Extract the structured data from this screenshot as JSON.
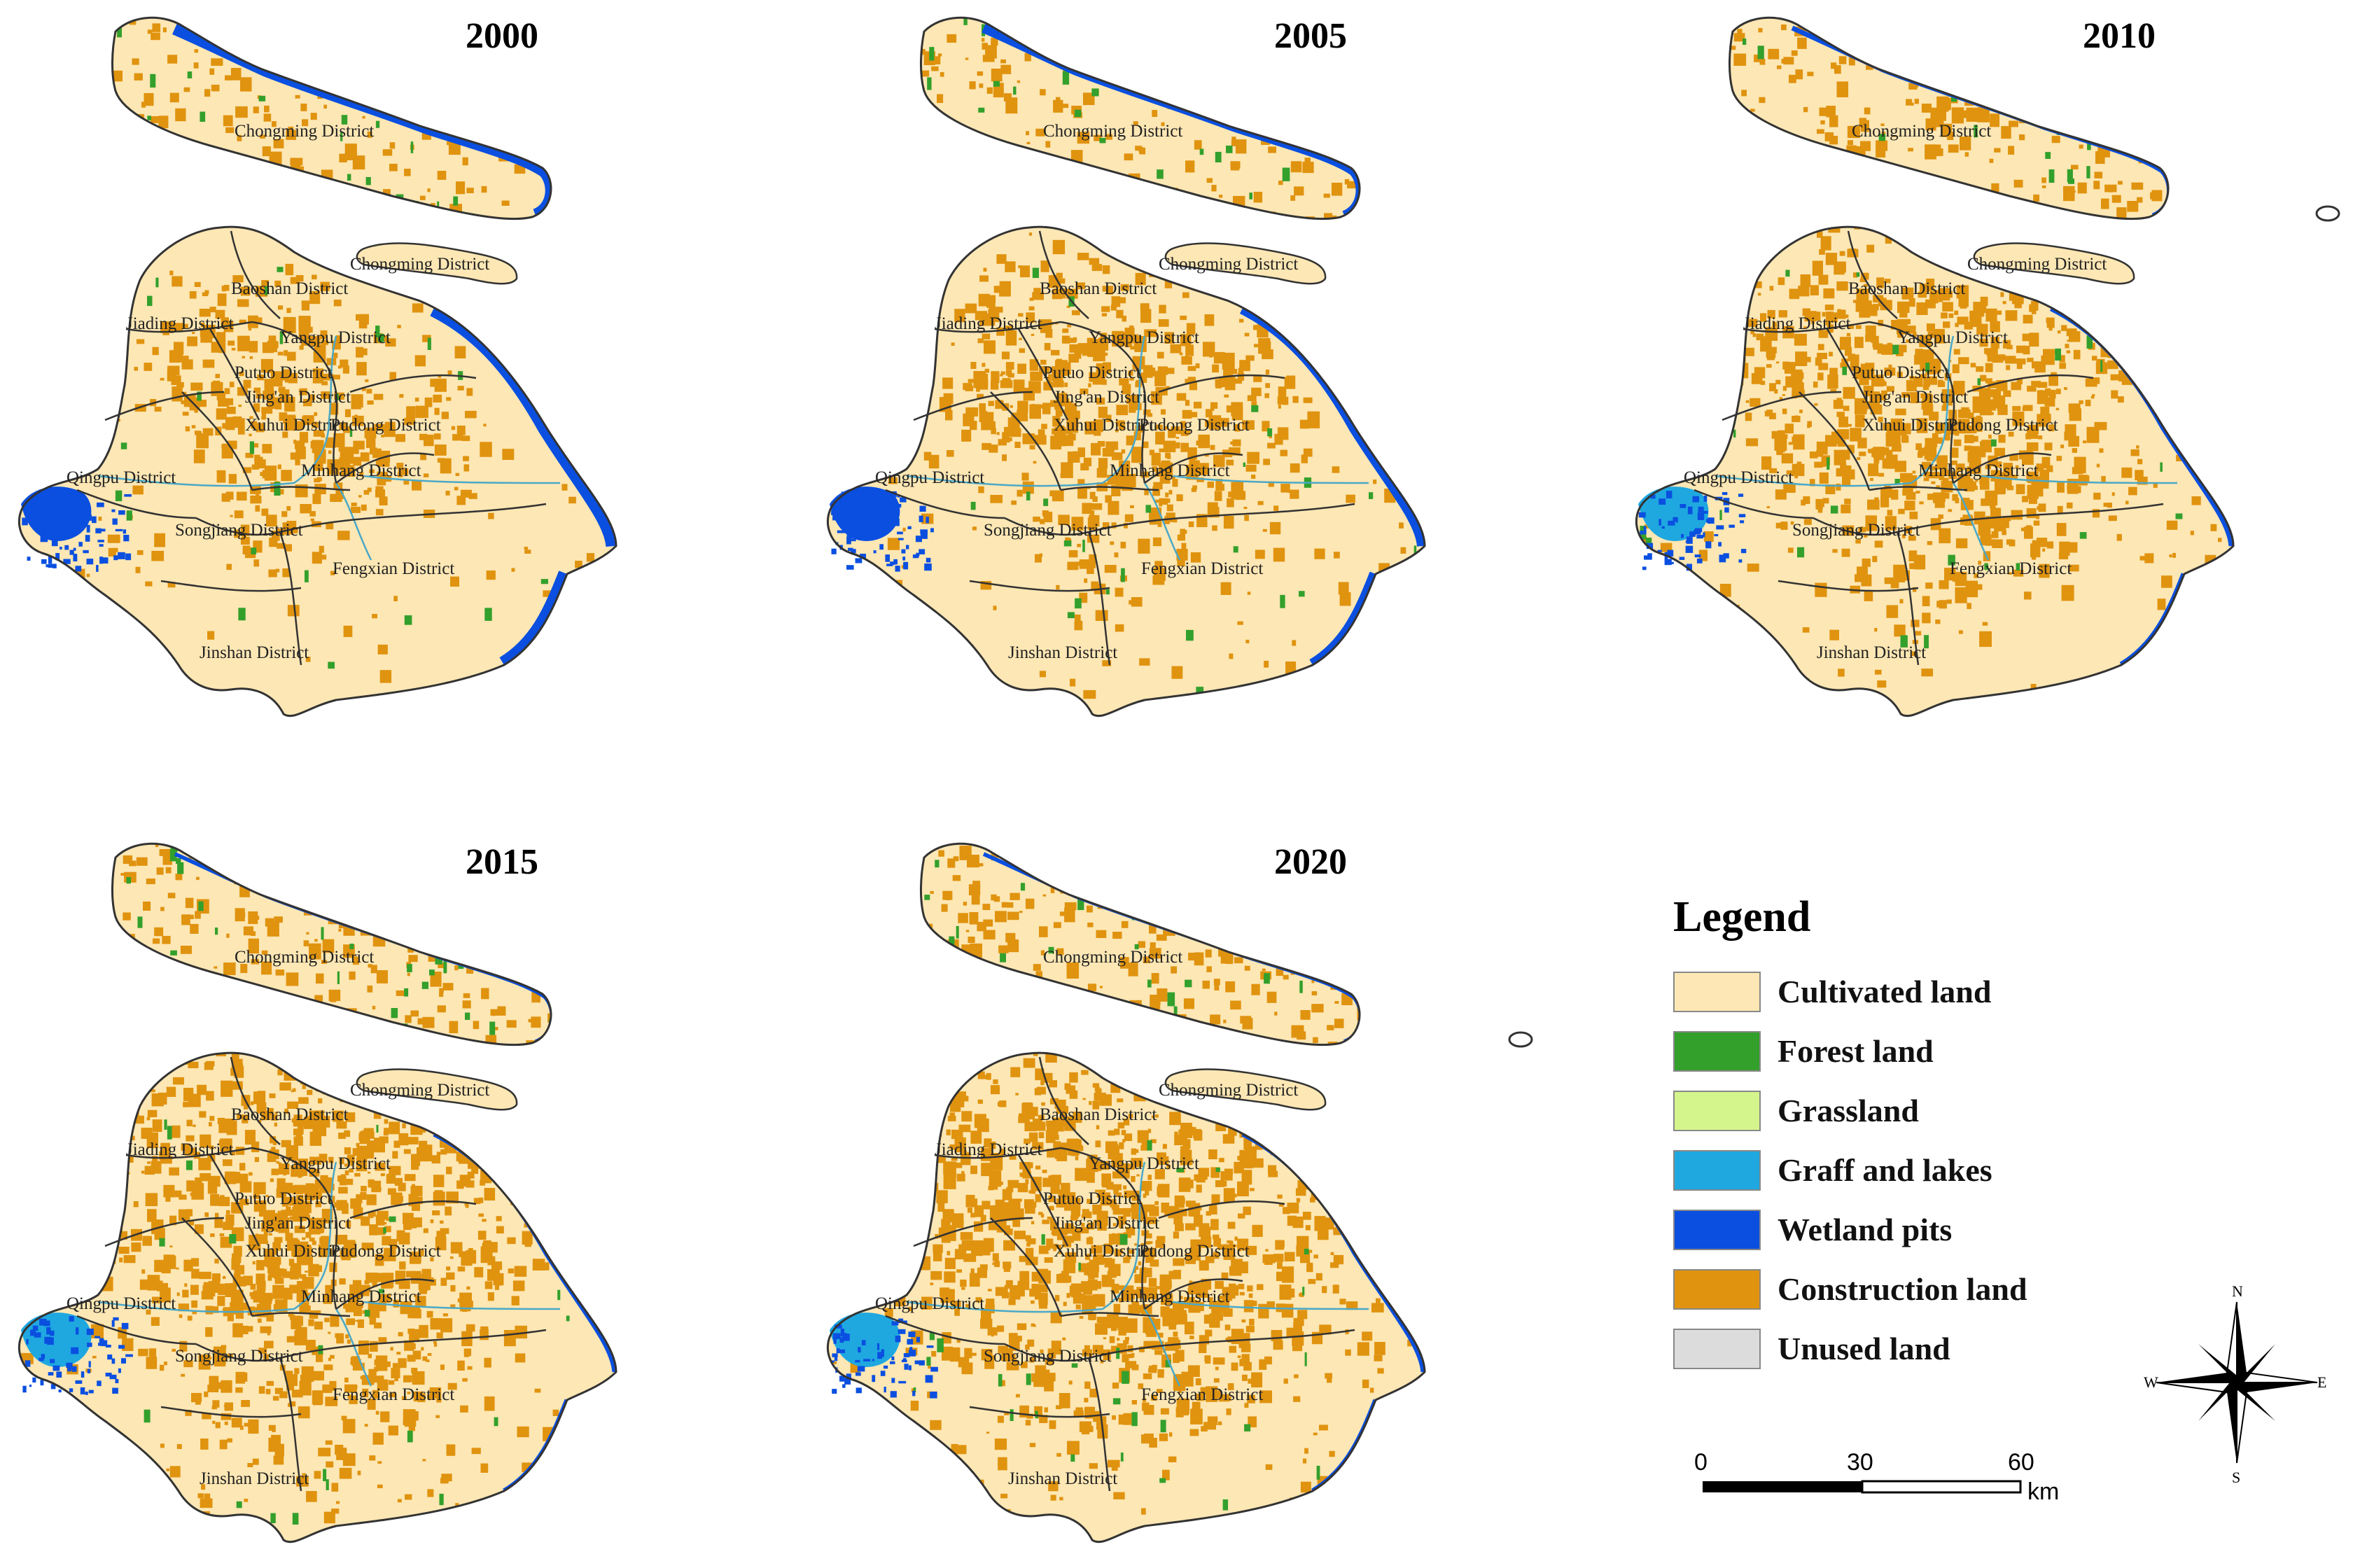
{
  "panels": [
    {
      "year": "2000",
      "construction_share": 0.25,
      "wetland_share": 0.14,
      "graff_share": 0.0
    },
    {
      "year": "2005",
      "construction_share": 0.35,
      "wetland_share": 0.1,
      "graff_share": 0.01
    },
    {
      "year": "2010",
      "construction_share": 0.48,
      "wetland_share": 0.05,
      "graff_share": 0.04
    },
    {
      "year": "2015",
      "construction_share": 0.58,
      "wetland_share": 0.04,
      "graff_share": 0.05
    },
    {
      "year": "2020",
      "construction_share": 0.6,
      "wetland_share": 0.04,
      "graff_share": 0.06
    }
  ],
  "districts": {
    "chongming_island": "Chongming District",
    "chongming_small": "Chongming District",
    "baoshan": "Baoshan District",
    "jiading": "Jiading District",
    "yangpu": "Yangpu District",
    "putuo": "Putuo District",
    "jingan": "Jing'an District",
    "xuhui": "Xuhui District",
    "pudong": "Pudong District",
    "qingpu": "Qingpu District",
    "minhang": "Minhang District",
    "songjiang": "Songjiang District",
    "fengxian": "Fengxian District",
    "jinshan": "Jinshan District"
  },
  "legend": {
    "title": "Legend",
    "items": [
      {
        "label": "Cultivated land",
        "color": "#fde7b4"
      },
      {
        "label": "Forest land",
        "color": "#33a02c"
      },
      {
        "label": "Grassland",
        "color": "#d4f58c"
      },
      {
        "label": "Graff and lakes",
        "color": "#1fa8e0"
      },
      {
        "label": "Wetland pits",
        "color": "#0a4fe0"
      },
      {
        "label": "Construction land",
        "color": "#e0930f"
      },
      {
        "label": "Unused land",
        "color": "#dcdcdc"
      }
    ]
  },
  "scale": {
    "ticks": [
      "0",
      "30",
      "60"
    ],
    "unit": "km"
  },
  "compass": {
    "n": "N",
    "s": "S",
    "e": "E",
    "w": "W"
  },
  "colors": {
    "cultivated": "#fde7b4",
    "construction": "#e0930f",
    "wetland": "#0a4fe0",
    "graff": "#1fa8e0",
    "forest": "#33a02c",
    "grass": "#d4f58c",
    "boundary": "#333333",
    "river": "#4aa8c8"
  }
}
